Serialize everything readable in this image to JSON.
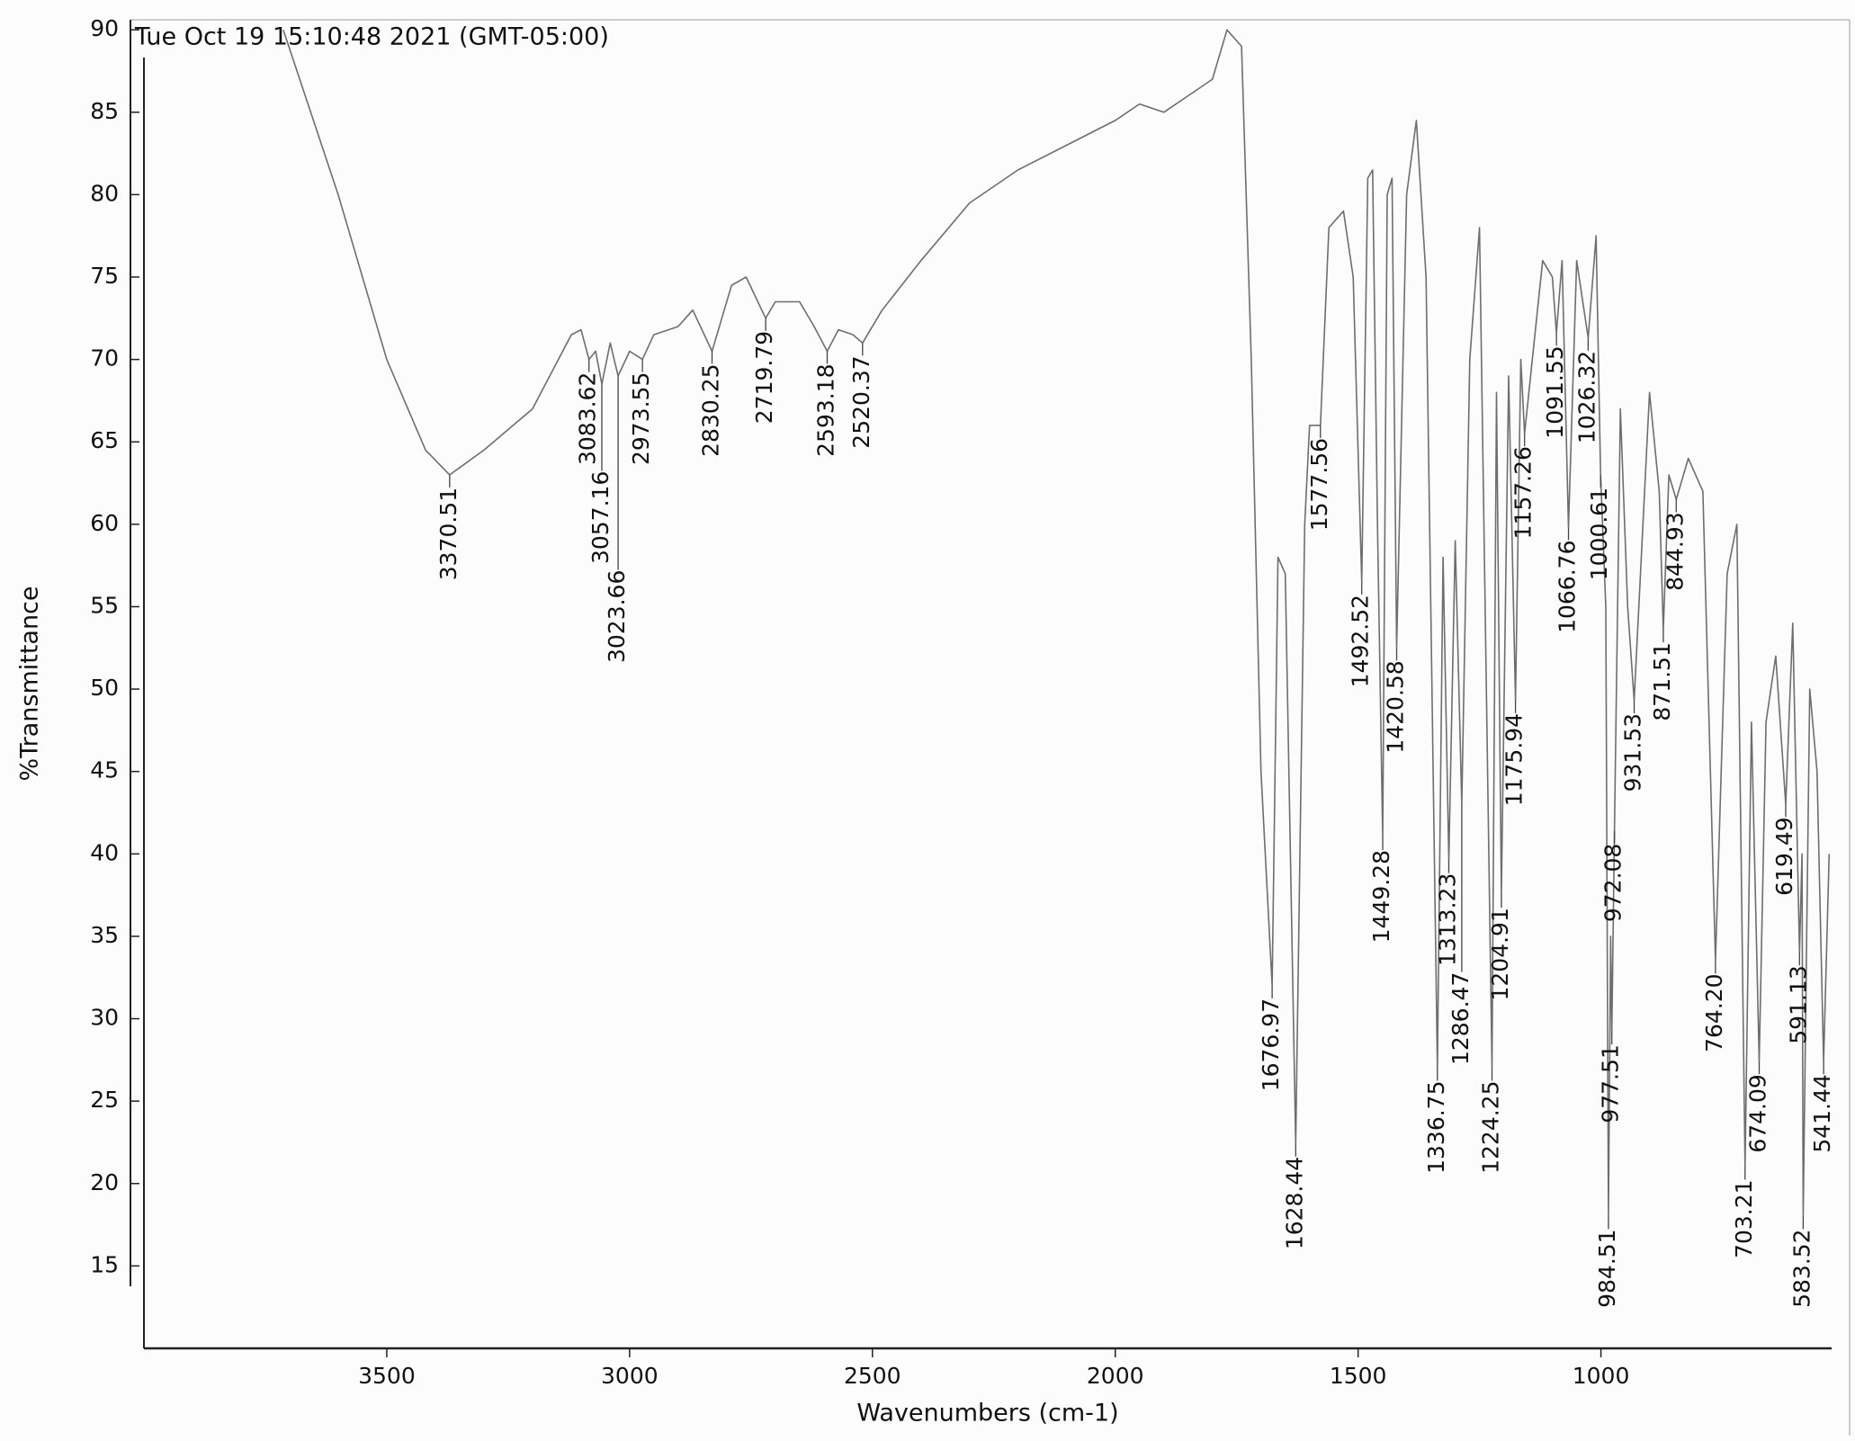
{
  "chart_data": {
    "type": "line",
    "title": "Tue Oct 19 15:10:48 2021 (GMT-05:00)",
    "x_label": "Wavenumbers (cm-1)",
    "y_label": "%Transmittance",
    "color": "#6e6e6e",
    "xlim": [
      4000,
      525
    ],
    "xticks": [
      3500,
      3000,
      2500,
      2000,
      1500,
      1000
    ],
    "ylim": [
      10,
      90.5
    ],
    "yticks": [
      15,
      20,
      25,
      30,
      35,
      40,
      45,
      50,
      55,
      60,
      65,
      70,
      75,
      80,
      85,
      90
    ],
    "grid": false,
    "x": [
      3713,
      3600,
      3500,
      3420,
      3370.51,
      3300,
      3200,
      3120,
      3100,
      3083.62,
      3070,
      3057.16,
      3040,
      3023.66,
      3000,
      2973.55,
      2950,
      2900,
      2870,
      2830.25,
      2790,
      2760,
      2719.79,
      2700,
      2650,
      2620,
      2593.18,
      2570,
      2540,
      2520.37,
      2480,
      2400,
      2300,
      2200,
      2100,
      2000,
      1950,
      1900,
      1850,
      1800,
      1770,
      1740,
      1720,
      1700,
      1676.97,
      1665,
      1650,
      1628.44,
      1610,
      1600,
      1577.56,
      1560,
      1530,
      1510,
      1492.52,
      1480,
      1470,
      1460,
      1449.28,
      1440,
      1430,
      1420.58,
      1400,
      1380,
      1360,
      1336.75,
      1325,
      1313.23,
      1300,
      1286.47,
      1270,
      1250,
      1224.25,
      1215,
      1204.91,
      1190,
      1175.94,
      1165,
      1157.26,
      1120,
      1100,
      1091.55,
      1080,
      1066.76,
      1050,
      1026.32,
      1010,
      1000.61,
      990,
      984.51,
      980,
      977.51,
      972.08,
      960,
      945,
      931.53,
      900,
      880,
      871.51,
      860,
      844.93,
      820,
      790,
      764.2,
      740,
      720,
      703.21,
      690,
      674.09,
      660,
      640,
      619.49,
      605,
      591.13,
      586,
      583.52,
      570,
      555,
      541.44,
      530
    ],
    "values": [
      90,
      80,
      70,
      64.5,
      63,
      64.5,
      67,
      71.5,
      71.8,
      70,
      70.5,
      68.5,
      71,
      69,
      70.5,
      70,
      71.5,
      72,
      73,
      70.5,
      74.5,
      75,
      72.5,
      73.5,
      73.5,
      72,
      70.5,
      71.8,
      71.5,
      71,
      73,
      76,
      79.5,
      81.5,
      83,
      84.5,
      85.5,
      85,
      86,
      87,
      90,
      89,
      70,
      45,
      32,
      58,
      57,
      22.4,
      60,
      66,
      66,
      78,
      79,
      75,
      56.5,
      81,
      81.5,
      60,
      41,
      80,
      81,
      52.5,
      80,
      84.5,
      75,
      27,
      58,
      39.6,
      59,
      43,
      70,
      78,
      27,
      68,
      37.5,
      69,
      49.3,
      70,
      65.5,
      76,
      75,
      71.6,
      76,
      59.8,
      76,
      71.3,
      77.5,
      63,
      55,
      18,
      35,
      29.2,
      41.4,
      67,
      55,
      49.3,
      68,
      62,
      53.6,
      63,
      61.5,
      64,
      62,
      33.5,
      57,
      60,
      21,
      48,
      27.4,
      48,
      52,
      43,
      54,
      34,
      40,
      18,
      50,
      45,
      27.4,
      40
    ],
    "annotations": [
      {
        "x": 3370.51,
        "y": 63
      },
      {
        "x": 3083.62,
        "y": 70
      },
      {
        "x": 3057.16,
        "y": 68.5
      },
      {
        "x": 3023.66,
        "y": 69
      },
      {
        "x": 2973.55,
        "y": 70
      },
      {
        "x": 2830.25,
        "y": 70.5
      },
      {
        "x": 2719.79,
        "y": 72.5
      },
      {
        "x": 2593.18,
        "y": 70.5
      },
      {
        "x": 2520.37,
        "y": 71
      },
      {
        "x": 1676.97,
        "y": 32
      },
      {
        "x": 1628.44,
        "y": 22.4
      },
      {
        "x": 1577.56,
        "y": 66
      },
      {
        "x": 1492.52,
        "y": 56.5
      },
      {
        "x": 1449.28,
        "y": 41
      },
      {
        "x": 1420.58,
        "y": 52.5
      },
      {
        "x": 1336.75,
        "y": 27
      },
      {
        "x": 1313.23,
        "y": 39.6
      },
      {
        "x": 1286.47,
        "y": 43
      },
      {
        "x": 1224.25,
        "y": 27
      },
      {
        "x": 1204.91,
        "y": 37.5
      },
      {
        "x": 1175.94,
        "y": 49.3
      },
      {
        "x": 1157.26,
        "y": 65.5
      },
      {
        "x": 1091.55,
        "y": 71.6
      },
      {
        "x": 1066.76,
        "y": 59.8
      },
      {
        "x": 1026.32,
        "y": 71.3
      },
      {
        "x": 1000.61,
        "y": 63
      },
      {
        "x": 984.51,
        "y": 18
      },
      {
        "x": 977.51,
        "y": 29.2
      },
      {
        "x": 972.08,
        "y": 41.4
      },
      {
        "x": 931.53,
        "y": 49.3
      },
      {
        "x": 871.51,
        "y": 53.6
      },
      {
        "x": 844.93,
        "y": 61.5
      },
      {
        "x": {
          "value": 764.2,
          "label": "764.20"
        },
        "y": 33.5
      },
      {
        "x": 703.21,
        "y": 21
      },
      {
        "x": 674.09,
        "y": 27.4
      },
      {
        "x": 619.49,
        "y": 43
      },
      {
        "x": 591.13,
        "y": 34
      },
      {
        "x": 583.52,
        "y": 18
      },
      {
        "x": 541.44,
        "y": 27.4
      }
    ]
  }
}
